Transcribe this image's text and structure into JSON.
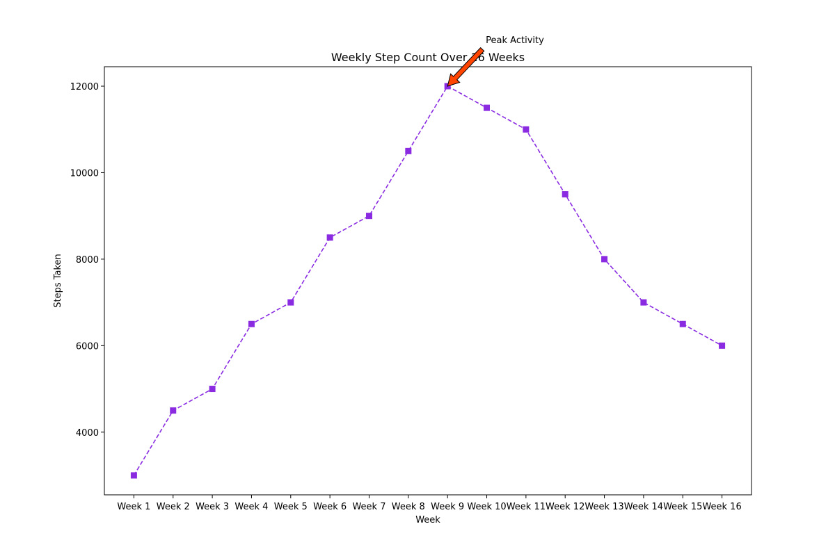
{
  "chart_data": {
    "type": "line",
    "title": "Weekly Step Count Over 16 Weeks",
    "xlabel": "Week",
    "ylabel": "Steps Taken",
    "categories": [
      "Week 1",
      "Week 2",
      "Week 3",
      "Week 4",
      "Week 5",
      "Week 6",
      "Week 7",
      "Week 8",
      "Week 9",
      "Week 10",
      "Week 11",
      "Week 12",
      "Week 13",
      "Week 14",
      "Week 15",
      "Week 16"
    ],
    "series": [
      {
        "values": [
          3000,
          4500,
          5000,
          6500,
          7000,
          8500,
          9000,
          10500,
          12000,
          11500,
          11000,
          9500,
          8000,
          7000,
          6500,
          6000
        ],
        "color": "#8a2be2",
        "line_style": "dashed",
        "marker": "square"
      }
    ],
    "yticks": [
      4000,
      6000,
      8000,
      10000,
      12000
    ],
    "ylim": [
      2550,
      12450
    ],
    "grid": false,
    "annotation": {
      "text": "Peak Activity",
      "category": "Week 9",
      "value": 12000,
      "arrow_color": "#ff4500"
    }
  }
}
